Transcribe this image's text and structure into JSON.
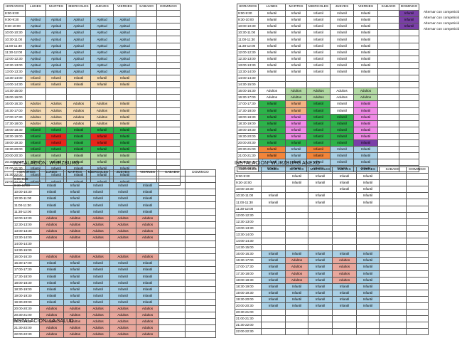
{
  "headers": [
    "HORARIOS",
    "LUNES",
    "MARTES",
    "MIERCOLES",
    "JUEVES",
    "VIERNES",
    "SABADO",
    "DOMINGO"
  ],
  "colors": {
    "blue": "#a9cfe4",
    "beige": "#f5ddb8",
    "red": "#e8251c",
    "green": "#2db34a",
    "pink": "#e8a79c",
    "salmon": "#f4b183",
    "orange": "#f2853a",
    "violet": "#f08ae6",
    "purple": "#7a3fa8",
    "lightgreen": "#b5dba6",
    "redbrown": "#d36a5f"
  },
  "tl": {
    "times": [
      "8:30-9:00",
      "9:00-9:30",
      "9:30-10:00",
      "10:00-10:30",
      "10:30-11:00",
      "11:00-11:30",
      "11:30-12:00",
      "12:00-12:30",
      "12:30-13:00",
      "13:00-13:30",
      "13:30-14:00",
      "14:00-14:30",
      "14:30-15:00",
      "15:00-16:00",
      "16:00-16:30",
      "16:30-17:00",
      "17:00-17:30",
      "17:30-18:00",
      "18:00-18:30",
      "18:30-19:00",
      "19:00-19:30",
      "19:30-20:00",
      "20:00-20:30",
      "20:30-21:00",
      "21:00-21:30",
      "21:30-22:00",
      "22:00-22:30"
    ],
    "cells": [
      [
        "",
        "",
        "",
        "",
        "",
        "",
        ""
      ],
      [
        "Aptitud",
        "Aptitud",
        "Aptitud",
        "Aptitud",
        "Aptitud",
        "",
        ""
      ],
      [
        "Aptitud",
        "Aptitud",
        "Aptitud",
        "Aptitud",
        "Aptitud",
        "",
        ""
      ],
      [
        "Aptitud",
        "Aptitud",
        "Aptitud",
        "Aptitud",
        "Aptitud",
        "",
        ""
      ],
      [
        "Aptitud",
        "Aptitud",
        "Aptitud",
        "Aptitud",
        "Aptitud",
        "",
        ""
      ],
      [
        "Aptitud",
        "Aptitud",
        "Aptitud",
        "Aptitud",
        "Aptitud",
        "",
        ""
      ],
      [
        "Aptitud",
        "Aptitud",
        "Aptitud",
        "Aptitud",
        "Aptitud",
        "",
        ""
      ],
      [
        "Aptitud",
        "Aptitud",
        "Aptitud",
        "Aptitud",
        "Aptitud",
        "",
        ""
      ],
      [
        "Aptitud",
        "Aptitud",
        "Aptitud",
        "Aptitud",
        "Aptitud",
        "",
        ""
      ],
      [
        "Aptitud",
        "Aptitud",
        "Aptitud",
        "Aptitud",
        "Aptitud",
        "",
        ""
      ],
      [
        "Infantil",
        "Infantil",
        "Infantil",
        "Infantil",
        "Infantil",
        "",
        ""
      ],
      [
        "Infantil",
        "Infantil",
        "Infantil",
        "Infantil",
        "Infantil",
        "",
        ""
      ],
      [
        "",
        "",
        "",
        "",
        "",
        "",
        ""
      ],
      [
        "",
        "",
        "",
        "",
        "",
        "",
        ""
      ],
      [
        "Adultos",
        "Adultos",
        "Adultos",
        "Adultos",
        "Infantil",
        "",
        ""
      ],
      [
        "Adultos",
        "Adultos",
        "Adultos",
        "Adultos",
        "Infantil",
        "",
        ""
      ],
      [
        "Adultos",
        "Adultos",
        "Adultos",
        "Adultos",
        "Infantil",
        "",
        ""
      ],
      [
        "Adultos",
        "Adultos",
        "Adultos",
        "Adultos",
        "Infantil",
        "",
        ""
      ],
      [
        "Infantil",
        "Infantil",
        "Infantil",
        "Infantil",
        "Infantil",
        "",
        ""
      ],
      [
        "Infantil",
        "Infantil",
        "Infantil",
        "Infantil",
        "Infantil",
        "",
        ""
      ],
      [
        "Infantil",
        "Infantil",
        "Infantil",
        "Infantil",
        "Infantil",
        "",
        ""
      ],
      [
        "Infantil",
        "Infantil",
        "Infantil",
        "Infantil",
        "Infantil",
        "",
        ""
      ],
      [
        "Infantil",
        "Infantil",
        "Infantil",
        "Infantil",
        "Infantil",
        "",
        ""
      ],
      [
        "Infantil",
        "Infantil",
        "Infantil",
        "Infantil",
        "Infantil",
        "",
        ""
      ],
      [
        "Infantil",
        "Infantil",
        "Infantil",
        "Infantil",
        "Infantil",
        "",
        ""
      ],
      [
        "Infantil",
        "Infantil",
        "Infantil",
        "Infantil",
        "Infantil",
        "",
        ""
      ],
      [
        "Infantil",
        "Infantil",
        "Infantil",
        "Infantil",
        "Infantil",
        "",
        ""
      ]
    ]
  },
  "tr": {
    "times": [
      "9:00-9:30",
      "9:30-10:00",
      "10:00-10:30",
      "10:30-11:00",
      "11:00-11:30",
      "11:30-12:00",
      "12:00-12:30",
      "12:30-13:00",
      "13:00-13:30",
      "13:30-14:00",
      "14:00-14:30",
      "14:30-15:00",
      "16:00-16:30",
      "16:30-17:00",
      "17:00-17:30",
      "17:30-18:00",
      "18:00-18:30",
      "18:30-19:00",
      "19:00-19:30",
      "19:30-20:00",
      "20:00-20:30",
      "20:30-21:00",
      "21:00-21:30",
      "21:30-22:00",
      "22:00-22:30"
    ],
    "cells": [
      [
        "Infantil",
        "Infantil",
        "Infantil",
        "Infantil",
        "Infantil",
        "",
        "Infantil"
      ],
      [
        "Infantil",
        "Infantil",
        "Infantil",
        "Infantil",
        "Infantil",
        "",
        "Infantil"
      ],
      [
        "Infantil",
        "Infantil",
        "Infantil",
        "Infantil",
        "Infantil",
        "",
        "Infantil"
      ],
      [
        "Infantil",
        "Infantil",
        "Infantil",
        "Infantil",
        "Infantil",
        "",
        ""
      ],
      [
        "Infantil",
        "Infantil",
        "Infantil",
        "Infantil",
        "Infantil",
        "",
        ""
      ],
      [
        "Infantil",
        "Infantil",
        "Infantil",
        "Infantil",
        "Infantil",
        "",
        ""
      ],
      [
        "Infantil",
        "Infantil",
        "Infantil",
        "Infantil",
        "Infantil",
        "",
        ""
      ],
      [
        "Infantil",
        "Infantil",
        "Infantil",
        "Infantil",
        "Infantil",
        "",
        ""
      ],
      [
        "Infantil",
        "Infantil",
        "Infantil",
        "Infantil",
        "Infantil",
        "",
        ""
      ],
      [
        "Infantil",
        "Infantil",
        "Infantil",
        "Infantil",
        "Infantil",
        "",
        ""
      ],
      [
        "",
        "",
        "",
        "",
        "",
        "",
        ""
      ],
      [
        "",
        "",
        "",
        "",
        "",
        "",
        ""
      ],
      [
        "Adultos",
        "Adultos",
        "Adultos",
        "Adultos",
        "Adultos",
        "",
        ""
      ],
      [
        "Adultos",
        "Adultos",
        "Adultos",
        "Adultos",
        "Adultos",
        "",
        ""
      ],
      [
        "Infantil",
        "Infantil",
        "Infantil",
        "Infantil",
        "Infantil",
        "",
        ""
      ],
      [
        "Infantil",
        "Infantil",
        "Infantil",
        "Infantil",
        "Infantil",
        "",
        ""
      ],
      [
        "Infantil",
        "Infantil",
        "Infantil",
        "Infantil",
        "Infantil",
        "",
        ""
      ],
      [
        "Infantil",
        "Infantil",
        "Infantil",
        "Infantil",
        "Infantil",
        "",
        ""
      ],
      [
        "Infantil",
        "Infantil",
        "Infantil",
        "Infantil",
        "Infantil",
        "",
        ""
      ],
      [
        "Infantil",
        "Infantil",
        "Infantil",
        "Infantil",
        "Infantil",
        "",
        ""
      ],
      [
        "Infantil",
        "Infantil",
        "Infantil",
        "Infantil",
        "Infantil",
        "",
        ""
      ],
      [
        "Infantil",
        "Infantil",
        "Infantil",
        "Infantil",
        "Infantil",
        "",
        ""
      ],
      [
        "Infantil",
        "Infantil",
        "Infantil",
        "Infantil",
        "Infantil",
        "",
        ""
      ],
      [
        "Infantil",
        "Infantil",
        "Infantil",
        "Infantil",
        "Infantil",
        "",
        ""
      ],
      [
        "Infantil",
        "Infantil",
        "Infantil",
        "Infantil",
        "Infantil",
        "",
        ""
      ]
    ],
    "side_note": "Alternar con competició"
  },
  "bl": {
    "caption": "INSTALACIÓN: WÜRZBURG",
    "times": [
      "9:00-9:30",
      "9:30-10:00",
      "10:00-10:30",
      "10:30-11:00",
      "11:00-11:30",
      "11:30-12:00",
      "12:00-12:30",
      "12:30-13:00",
      "13:00-13:30",
      "13:30-14:00",
      "14:00-14:30",
      "14:30-15:00",
      "16:00-16:30",
      "16:30-17:00",
      "17:00-17:30",
      "17:30-18:00",
      "18:00-18:30",
      "18:30-19:00",
      "19:00-19:30",
      "19:30-20:00",
      "20:00-20:30",
      "20:30-21:00",
      "21:00-21:30",
      "21:30-22:00",
      "22:00-22:30"
    ],
    "cells": [
      [
        "",
        "",
        "",
        "",
        "",
        "",
        ""
      ],
      [
        "Infantil",
        "Infantil",
        "Infantil",
        "Infantil",
        "Infantil",
        "",
        ""
      ],
      [
        "Infantil",
        "Infantil",
        "Infantil",
        "Infantil",
        "Infantil",
        "",
        ""
      ],
      [
        "Infantil",
        "Infantil",
        "Infantil",
        "Infantil",
        "Infantil",
        "",
        ""
      ],
      [
        "Infantil",
        "Infantil",
        "Infantil",
        "Infantil",
        "Infantil",
        "",
        ""
      ],
      [
        "Infantil",
        "Infantil",
        "Infantil",
        "Infantil",
        "Infantil",
        "",
        ""
      ],
      [
        "Adultos",
        "Adultos",
        "Adultos",
        "Adultos",
        "Adultos",
        "",
        ""
      ],
      [
        "Adultos",
        "Adultos",
        "Adultos",
        "Adultos",
        "Adultos",
        "",
        ""
      ],
      [
        "Adultos",
        "Adultos",
        "Adultos",
        "Adultos",
        "Adultos",
        "",
        ""
      ],
      [
        "Adultos",
        "Adultos",
        "Adultos",
        "Adultos",
        "Adultos",
        "",
        ""
      ],
      [
        "",
        "",
        "",
        "",
        "",
        "",
        ""
      ],
      [
        "",
        "",
        "",
        "",
        "",
        "",
        ""
      ],
      [
        "Adultos",
        "Adultos",
        "Adultos",
        "Adultos",
        "Adultos",
        "",
        ""
      ],
      [
        "Infantil",
        "Infantil",
        "Infantil",
        "Infantil",
        "Infantil",
        "",
        ""
      ],
      [
        "Infantil",
        "Infantil",
        "Infantil",
        "Infantil",
        "Infantil",
        "",
        ""
      ],
      [
        "Infantil",
        "Infantil",
        "Infantil",
        "Infantil",
        "Infantil",
        "",
        ""
      ],
      [
        "Infantil",
        "Infantil",
        "Infantil",
        "Infantil",
        "Infantil",
        "",
        ""
      ],
      [
        "Infantil",
        "Infantil",
        "Infantil",
        "Infantil",
        "Infantil",
        "",
        ""
      ],
      [
        "Infantil",
        "Infantil",
        "Infantil",
        "Infantil",
        "Infantil",
        "",
        ""
      ],
      [
        "Infantil",
        "Infantil",
        "Infantil",
        "Infantil",
        "Infantil",
        "",
        ""
      ],
      [
        "Adultos",
        "Adultos",
        "Adultos",
        "Adultos",
        "Adultos",
        "",
        ""
      ],
      [
        "Adultos",
        "Adultos",
        "Adultos",
        "Adultos",
        "Adultos",
        "",
        ""
      ],
      [
        "Adultos",
        "Adultos",
        "Adultos",
        "Adultos",
        "Adultos",
        "",
        ""
      ],
      [
        "Adultos",
        "Adultos",
        "Adultos",
        "Adultos",
        "Adultos",
        "",
        ""
      ],
      [
        "Adultos",
        "Adultos",
        "Adultos",
        "Adultos",
        "Adultos",
        "",
        ""
      ]
    ],
    "footer_caption": "INSTALACIÓN: LA SALUD"
  },
  "br": {
    "caption": "INSTALACIÓN: WÜRZBURG ANEXO",
    "times": [
      "9:30-9:30",
      "9:30-10:00",
      "10:00-10:30",
      "10:30-11:00",
      "11:00-11:30",
      "11:30-12:00",
      "12:00-12:30",
      "12:30-13:00",
      "13:00-13:30",
      "13:30-14:00",
      "14:00-14:30",
      "14:30-15:00",
      "16:00-16:30",
      "16:30-17:00",
      "17:00-17:30",
      "17:30-18:00",
      "18:00-18:30",
      "18:30-19:00",
      "19:00-19:30",
      "19:30-20:00",
      "20:00-20:30",
      "20:30-21:00",
      "21:00-21:30",
      "21:30-22:00",
      "22:00-22:30"
    ],
    "cells": [
      [
        "",
        "Infantil",
        "Infantil",
        "Infantil",
        "Infantil",
        "",
        ""
      ],
      [
        "",
        "Infantil",
        "Infantil",
        "Infantil",
        "Infantil",
        "",
        ""
      ],
      [
        "",
        "",
        "",
        "Infantil",
        "Infantil",
        "",
        ""
      ],
      [
        "Infantil",
        "",
        "Infantil",
        "",
        "Infantil",
        "",
        ""
      ],
      [
        "Infantil",
        "",
        "Infantil",
        "",
        "Infantil",
        "",
        ""
      ],
      [
        "",
        "",
        "",
        "",
        "",
        "",
        ""
      ],
      [
        "",
        "",
        "",
        "",
        "",
        "",
        ""
      ],
      [
        "",
        "",
        "",
        "",
        "",
        "",
        ""
      ],
      [
        "",
        "",
        "",
        "",
        "",
        "",
        ""
      ],
      [
        "",
        "",
        "",
        "",
        "",
        "",
        ""
      ],
      [
        "",
        "",
        "",
        "",
        "",
        "",
        ""
      ],
      [
        "",
        "",
        "",
        "",
        "",
        "",
        ""
      ],
      [
        "Infantil",
        "Infantil",
        "Infantil",
        "Infantil",
        "Infantil",
        "",
        ""
      ],
      [
        "Infantil",
        "Adultos",
        "Infantil",
        "Adultos",
        "Infantil",
        "",
        ""
      ],
      [
        "Infantil",
        "Adultos",
        "Infantil",
        "Adultos",
        "Infantil",
        "",
        ""
      ],
      [
        "Infantil",
        "Adultos",
        "Infantil",
        "Adultos",
        "Infantil",
        "",
        ""
      ],
      [
        "Infantil",
        "Adultos",
        "Infantil",
        "Adultos",
        "Infantil",
        "",
        ""
      ],
      [
        "Infantil",
        "Infantil",
        "Infantil",
        "Infantil",
        "Infantil",
        "",
        ""
      ],
      [
        "Infantil",
        "Infantil",
        "Infantil",
        "Infantil",
        "Infantil",
        "",
        ""
      ],
      [
        "Infantil",
        "Infantil",
        "Infantil",
        "Infantil",
        "Infantil",
        "",
        ""
      ],
      [
        "Infantil",
        "Infantil",
        "Infantil",
        "Infantil",
        "Infantil",
        "",
        ""
      ],
      [
        "",
        "",
        "",
        "",
        "",
        "",
        ""
      ],
      [
        "",
        "",
        "",
        "",
        "",
        "",
        ""
      ],
      [
        "",
        "",
        "",
        "",
        "",
        "",
        ""
      ],
      [
        "",
        "",
        "",
        "",
        "",
        "",
        ""
      ]
    ]
  }
}
